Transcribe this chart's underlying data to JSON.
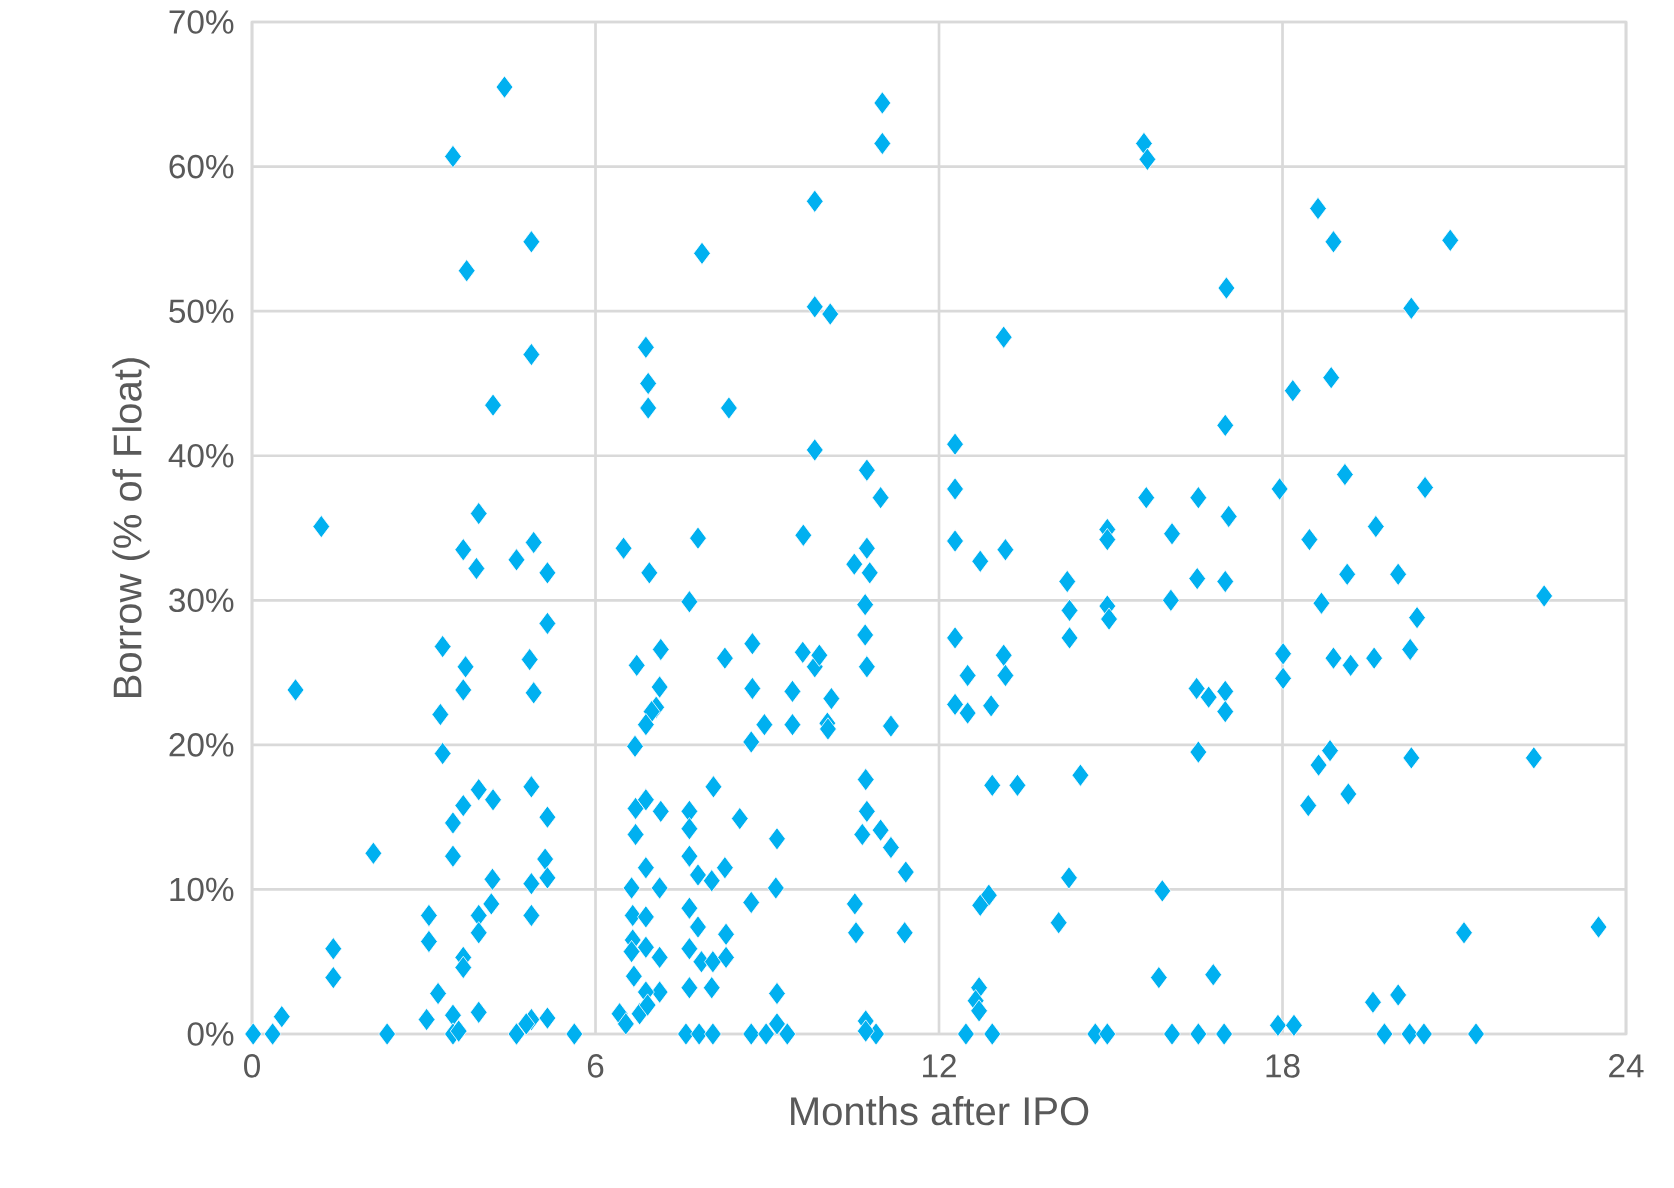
{
  "chart_data": {
    "type": "scatter",
    "xlabel": "Months after IPO",
    "ylabel": "Borrow (% of Float)",
    "xlim": [
      0,
      24
    ],
    "ylim": [
      0,
      70
    ],
    "xticks": [
      0,
      6,
      12,
      18,
      24
    ],
    "yticks": [
      {
        "value": 0,
        "label": "0%"
      },
      {
        "value": 10,
        "label": "10%"
      },
      {
        "value": 20,
        "label": "20%"
      },
      {
        "value": 30,
        "label": "30%"
      },
      {
        "value": 40,
        "label": "40%"
      },
      {
        "value": 50,
        "label": "50%"
      },
      {
        "value": 60,
        "label": "60%"
      },
      {
        "value": 70,
        "label": "70%"
      }
    ],
    "grid": true,
    "marker": "diamond",
    "series": [
      {
        "color": "#00b0f0",
        "x": [
          4.41,
          3.51,
          4.88,
          3.75,
          4.88,
          4.21,
          1.21,
          3.96,
          3.69,
          4.92,
          4.62,
          3.92,
          5.16,
          5.16,
          3.33,
          3.73,
          4.85,
          0.76,
          3.69,
          4.92,
          3.29,
          3.33,
          4.88,
          3.96,
          4.21,
          3.69,
          3.51,
          5.16,
          2.12,
          3.51,
          5.12,
          4.2,
          4.88,
          5.16,
          4.18,
          3.96,
          3.09,
          4.88,
          3.09,
          3.96,
          1.42,
          1.42,
          3.69,
          3.69,
          3.25,
          0.52,
          3.05,
          3.51,
          3.96,
          4.88,
          5.16,
          0.02,
          0.36,
          2.36,
          3.51,
          3.61,
          4.62,
          4.79,
          5.63,
          11.01,
          11.01,
          9.83,
          7.86,
          9.83,
          10.1,
          6.88,
          6.92,
          6.92,
          8.33,
          9.83,
          10.74,
          10.98,
          6.49,
          7.79,
          9.63,
          6.94,
          10.74,
          10.52,
          10.79,
          7.64,
          10.71,
          10.71,
          6.72,
          7.14,
          8.26,
          8.74,
          9.62,
          9.83,
          9.91,
          10.74,
          7.12,
          8.74,
          9.44,
          10.12,
          7.06,
          6.98,
          6.88,
          8.95,
          9.44,
          10.05,
          11.16,
          6.69,
          8.72,
          10.06,
          10.72,
          6.7,
          6.88,
          7.14,
          7.64,
          8.06,
          10.74,
          6.7,
          7.64,
          8.52,
          9.17,
          10.66,
          10.98,
          11.16,
          11.42,
          6.88,
          6.63,
          7.12,
          7.64,
          7.79,
          8.26,
          8.03,
          8.72,
          9.15,
          10.53,
          6.65,
          6.65,
          6.88,
          7.64,
          7.79,
          7.64,
          8.28,
          10.55,
          11.4,
          6.63,
          6.88,
          7.12,
          7.85,
          8.05,
          8.28,
          6.67,
          7.64,
          8.03,
          7.12,
          6.88,
          9.17,
          6.42,
          6.53,
          6.77,
          6.91,
          7.58,
          7.81,
          8.05,
          8.72,
          8.98,
          9.35,
          9.17,
          10.72,
          10.9,
          10.72,
          15.58,
          15.64,
          17.02,
          13.13,
          12.28,
          17.0,
          12.28,
          15.62,
          16.53,
          14.94,
          14.94,
          16.07,
          17.06,
          12.28,
          12.72,
          13.16,
          14.24,
          16.51,
          17.0,
          16.05,
          14.28,
          14.94,
          14.97,
          14.28,
          12.28,
          13.13,
          13.16,
          12.5,
          12.28,
          12.5,
          12.91,
          16.5,
          16.71,
          17.0,
          17.0,
          16.53,
          12.93,
          13.37,
          14.47,
          14.27,
          15.9,
          12.87,
          12.72,
          14.09,
          12.7,
          12.64,
          12.7,
          15.84,
          16.79,
          12.47,
          12.93,
          14.73,
          14.94,
          16.07,
          16.53,
          16.98,
          18.62,
          18.89,
          20.93,
          20.25,
          18.18,
          18.85,
          17.95,
          19.09,
          20.49,
          18.47,
          19.63,
          19.13,
          20.02,
          18.68,
          22.57,
          20.35,
          18.01,
          18.01,
          18.89,
          19.19,
          19.6,
          20.23,
          18.83,
          18.63,
          20.25,
          22.39,
          19.15,
          18.45,
          21.17,
          23.52,
          19.58,
          20.02,
          17.92,
          18.2,
          19.78,
          20.22,
          20.47,
          21.38
        ],
        "values": [
          65.5,
          60.7,
          54.8,
          52.8,
          47.0,
          43.5,
          35.1,
          36.0,
          33.5,
          34.0,
          32.8,
          32.2,
          31.9,
          28.4,
          26.8,
          25.4,
          25.9,
          23.8,
          23.8,
          23.6,
          22.1,
          19.4,
          17.1,
          16.9,
          16.2,
          15.8,
          14.6,
          15.0,
          12.5,
          12.3,
          12.1,
          10.7,
          10.4,
          10.8,
          9.0,
          8.2,
          8.2,
          8.2,
          6.4,
          7.0,
          5.9,
          3.9,
          5.3,
          4.6,
          2.8,
          1.2,
          1.0,
          1.3,
          1.5,
          1.0,
          1.1,
          0,
          0,
          0,
          0,
          0.2,
          0,
          0.7,
          0,
          64.4,
          61.6,
          57.6,
          54.0,
          50.3,
          49.8,
          47.5,
          45.0,
          43.3,
          43.3,
          40.4,
          39.0,
          37.1,
          33.6,
          34.3,
          34.5,
          31.9,
          33.6,
          32.5,
          31.9,
          29.9,
          29.7,
          27.6,
          25.5,
          26.6,
          26.0,
          27.0,
          26.4,
          25.4,
          26.2,
          25.4,
          24.0,
          23.9,
          23.7,
          23.2,
          22.6,
          22.3,
          21.4,
          21.4,
          21.4,
          21.5,
          21.3,
          19.9,
          20.2,
          21.1,
          17.6,
          15.6,
          16.2,
          15.4,
          15.4,
          17.1,
          15.4,
          13.8,
          14.2,
          14.9,
          13.5,
          13.8,
          14.1,
          12.9,
          11.2,
          11.5,
          10.1,
          10.1,
          12.3,
          11.0,
          11.5,
          10.6,
          9.1,
          10.1,
          9.0,
          8.2,
          6.5,
          8.1,
          8.7,
          7.4,
          5.9,
          6.9,
          7.0,
          7.0,
          5.7,
          6.0,
          5.3,
          5.0,
          5.0,
          5.3,
          4.0,
          3.2,
          3.2,
          2.9,
          2.9,
          2.8,
          1.4,
          0.7,
          1.4,
          2.0,
          0,
          0,
          0,
          0,
          0,
          0,
          0.7,
          0.9,
          0,
          0.2,
          61.6,
          60.5,
          51.6,
          48.2,
          40.8,
          42.1,
          37.7,
          37.1,
          37.1,
          34.9,
          34.2,
          34.6,
          35.8,
          34.1,
          32.7,
          33.5,
          31.3,
          31.5,
          31.3,
          30.0,
          29.3,
          29.6,
          28.7,
          27.4,
          27.4,
          26.2,
          24.8,
          24.8,
          22.8,
          22.2,
          22.7,
          23.9,
          23.3,
          23.7,
          22.3,
          19.5,
          17.2,
          17.2,
          17.9,
          10.8,
          9.9,
          9.6,
          8.9,
          7.7,
          3.2,
          2.3,
          1.6,
          3.9,
          4.1,
          0,
          0,
          0,
          0,
          0,
          0,
          0,
          57.1,
          54.8,
          54.9,
          50.2,
          44.5,
          45.4,
          37.7,
          38.7,
          37.8,
          34.2,
          35.1,
          31.8,
          31.8,
          29.8,
          30.3,
          28.8,
          26.3,
          24.6,
          26.0,
          25.5,
          26.0,
          26.6,
          19.6,
          18.6,
          19.1,
          19.1,
          16.6,
          15.8,
          7.0,
          7.4,
          2.2,
          2.7,
          0.6,
          0.6,
          0,
          0,
          0,
          0
        ]
      }
    ]
  }
}
